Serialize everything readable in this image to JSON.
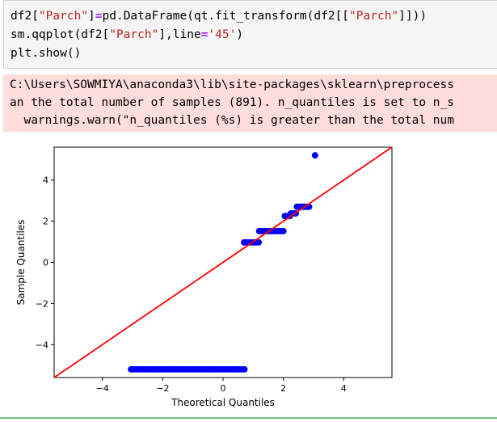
{
  "code_cell": {
    "line1": {
      "p1": "df2[",
      "s1": "\"Parch\"",
      "p2": "]",
      "op": "=",
      "p3": "pd.DataFrame(qt.fit_transform(df2[[",
      "s2": "\"Parch\"",
      "p4": "]]))"
    },
    "line2": {
      "p1": "sm.qqplot(df2[",
      "s1": "\"Parch\"",
      "p2": "],line",
      "op": "=",
      "s2": "'45'",
      "p3": ")"
    },
    "line3": "plt.show()"
  },
  "stderr": {
    "line1": "C:\\Users\\SOWMIYA\\anaconda3\\lib\\site-packages\\sklearn\\preprocess",
    "line2": "an the total number of samples (891). n_quantiles is set to n_s",
    "line3": "  warnings.warn(\"n_quantiles (%s) is greater than the total num"
  },
  "colors": {
    "stderr_bg": "#ffdddd",
    "points": "#0000ff",
    "line": "#ff0000"
  },
  "chart_data": {
    "type": "scatter",
    "xlabel": "Theoretical Quantiles",
    "ylabel": "Sample Quantiles",
    "xlim": [
      -5.6,
      5.6
    ],
    "ylim": [
      -5.6,
      5.6
    ],
    "xticks": [
      -4,
      -2,
      0,
      2,
      4
    ],
    "yticks": [
      -4,
      -2,
      0,
      2,
      4
    ],
    "xtick_labels": [
      "−4",
      "−2",
      "0",
      "2",
      "4"
    ],
    "ytick_labels": [
      "−4",
      "−2",
      "0",
      "2",
      "4"
    ],
    "reference_line": {
      "label": "45",
      "from": [
        -5.6,
        -5.6
      ],
      "to": [
        5.6,
        5.6
      ]
    },
    "series": [
      {
        "x_from": -3.05,
        "x_to": 0.75,
        "y": -5.2,
        "step": 0.08
      },
      {
        "x_from": 0.7,
        "x_to": 1.2,
        "y": 0.97,
        "step": 0.08
      },
      {
        "x_from": 1.2,
        "x_to": 2.05,
        "y": 1.52,
        "step": 0.08
      },
      {
        "x_from": 2.05,
        "x_to": 2.25,
        "y": 2.25,
        "step": 0.08
      },
      {
        "x_from": 2.25,
        "x_to": 2.45,
        "y": 2.38,
        "step": 0.08
      },
      {
        "x_from": 2.45,
        "x_to": 2.85,
        "y": 2.7,
        "step": 0.08
      },
      {
        "x_from": 3.05,
        "x_to": 3.05,
        "y": 5.2,
        "step": 0.08
      }
    ]
  }
}
